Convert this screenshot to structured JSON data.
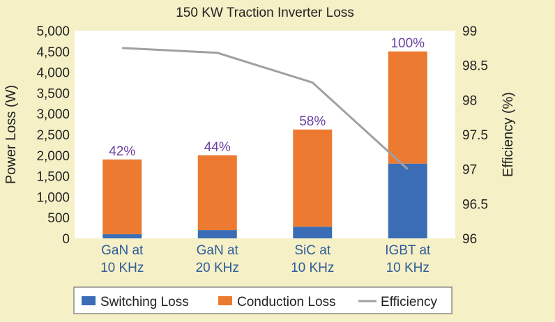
{
  "chart_data": {
    "type": "bar",
    "stacked": true,
    "title": "150 KW Traction Inverter Loss",
    "ylabel": "Power Loss (W)",
    "y2label": "Efficiency (%)",
    "ylim": [
      0,
      5000
    ],
    "yticks": [
      0,
      500,
      1000,
      1500,
      2000,
      2500,
      3000,
      3500,
      4000,
      4500,
      5000
    ],
    "ytick_labels": [
      "0",
      "500",
      "1,000",
      "1,500",
      "2,000",
      "2,500",
      "3,000",
      "3,500",
      "4,000",
      "4,500",
      "5,000"
    ],
    "y2lim": [
      96,
      99
    ],
    "y2ticks": [
      "96",
      "96.5",
      "97",
      "97.5",
      "98",
      "98.5",
      "99"
    ],
    "categories": [
      [
        "GaN at",
        "10 KHz"
      ],
      [
        "GaN at",
        "20 KHz"
      ],
      [
        "SiC at",
        "10 KHz"
      ],
      [
        "IGBT at",
        "10 KHz"
      ]
    ],
    "series": [
      {
        "name": "Switching Loss",
        "kind": "bar",
        "color": "#3a6db5",
        "values": [
          100,
          200,
          280,
          1800
        ]
      },
      {
        "name": "Conduction Loss",
        "kind": "bar",
        "color": "#ec7a30",
        "values": [
          1800,
          1800,
          2340,
          2700
        ]
      },
      {
        "name": "Efficiency",
        "kind": "line",
        "axis": "y2",
        "color": "#a0a0a0",
        "values": [
          98.75,
          98.68,
          98.25,
          97.0
        ]
      }
    ],
    "bar_labels": [
      "42%",
      "44%",
      "58%",
      "100%"
    ],
    "legend_position": "bottom",
    "grid": false
  }
}
